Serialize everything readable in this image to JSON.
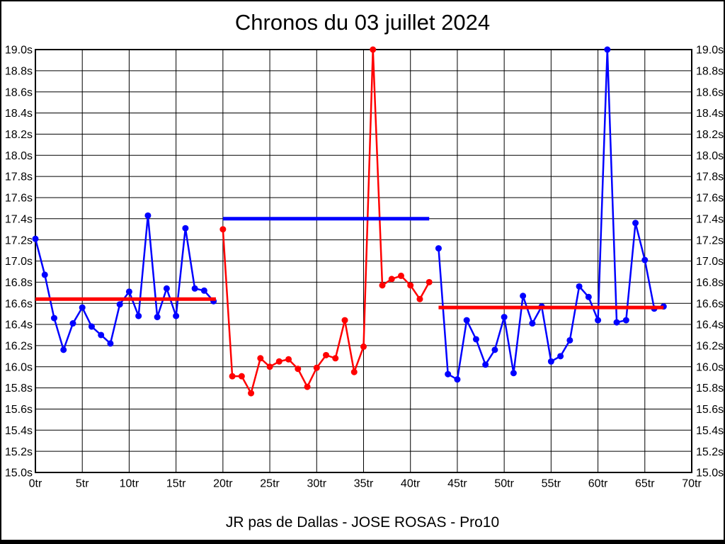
{
  "title": "Chronos du 03 juillet 2024",
  "caption": "JR pas de Dallas - JOSE ROSAS - Pro10",
  "chart_data": {
    "type": "line",
    "title": "Chronos du 03 juillet 2024",
    "subtitle": "JR pas de Dallas - JOSE ROSAS - Pro10",
    "x_unit": "tr",
    "y_unit": "s",
    "x_min": 0,
    "x_max": 70,
    "y_min": 15.0,
    "y_max": 19.0,
    "grid": true,
    "legend": "none",
    "colors": {
      "blue": "#0000ff",
      "red": "#ff0000",
      "grid": "#000000",
      "background": "#ffffff"
    },
    "x_ticks": [
      {
        "value": 0,
        "label": "0tr"
      },
      {
        "value": 5,
        "label": "5tr"
      },
      {
        "value": 10,
        "label": "10tr"
      },
      {
        "value": 15,
        "label": "15tr"
      },
      {
        "value": 20,
        "label": "20tr"
      },
      {
        "value": 25,
        "label": "25tr"
      },
      {
        "value": 30,
        "label": "30tr"
      },
      {
        "value": 35,
        "label": "35tr"
      },
      {
        "value": 40,
        "label": "40tr"
      },
      {
        "value": 45,
        "label": "45tr"
      },
      {
        "value": 50,
        "label": "50tr"
      },
      {
        "value": 55,
        "label": "55tr"
      },
      {
        "value": 60,
        "label": "60tr"
      },
      {
        "value": 65,
        "label": "65tr"
      },
      {
        "value": 70,
        "label": "70tr"
      }
    ],
    "y_ticks": [
      {
        "value": 19.0,
        "label": "19.0s"
      },
      {
        "value": 18.8,
        "label": "18.8s"
      },
      {
        "value": 18.6,
        "label": "18.6s"
      },
      {
        "value": 18.4,
        "label": "18.4s"
      },
      {
        "value": 18.2,
        "label": "18.2s"
      },
      {
        "value": 18.0,
        "label": "18.0s"
      },
      {
        "value": 17.8,
        "label": "17.8s"
      },
      {
        "value": 17.6,
        "label": "17.6s"
      },
      {
        "value": 17.4,
        "label": "17.4s"
      },
      {
        "value": 17.2,
        "label": "17.2s"
      },
      {
        "value": 17.0,
        "label": "17.0s"
      },
      {
        "value": 16.8,
        "label": "16.8s"
      },
      {
        "value": 16.6,
        "label": "16.6s"
      },
      {
        "value": 16.4,
        "label": "16.4s"
      },
      {
        "value": 16.2,
        "label": "16.2s"
      },
      {
        "value": 16.0,
        "label": "16.0s"
      },
      {
        "value": 15.8,
        "label": "15.8s"
      },
      {
        "value": 15.6,
        "label": "15.6s"
      },
      {
        "value": 15.4,
        "label": "15.4s"
      },
      {
        "value": 15.2,
        "label": "15.2s"
      },
      {
        "value": 15.0,
        "label": "15.0s"
      }
    ],
    "series": [
      {
        "name": "stint-1-lap-times",
        "color": "#0000ff",
        "start_lap": 0,
        "values": [
          17.21,
          16.87,
          16.46,
          16.16,
          16.41,
          16.56,
          16.38,
          16.3,
          16.22,
          16.59,
          16.71,
          16.48,
          17.43,
          16.47,
          16.74,
          16.48,
          17.31,
          16.74,
          16.72,
          16.62
        ]
      },
      {
        "name": "stint-2-lap-times",
        "color": "#ff0000",
        "start_lap": 20,
        "values": [
          17.3,
          15.91,
          15.91,
          15.75,
          16.08,
          16.0,
          16.05,
          16.07,
          15.98,
          15.81,
          15.99,
          16.11,
          16.08,
          16.44,
          15.95,
          16.19,
          19.0,
          16.77,
          16.83,
          16.86,
          16.77,
          16.64,
          16.8
        ]
      },
      {
        "name": "stint-3-lap-times",
        "color": "#0000ff",
        "start_lap": 43,
        "values": [
          17.12,
          15.93,
          15.88,
          16.44,
          16.26,
          16.02,
          16.16,
          16.47,
          15.94,
          16.67,
          16.41,
          16.57,
          16.05,
          16.1,
          16.25,
          16.76,
          16.66,
          16.44,
          19.0,
          16.42,
          16.44,
          17.36,
          17.01,
          16.55,
          16.57
        ]
      }
    ],
    "avg_lines": [
      {
        "name": "stint-1-average-line",
        "color": "#ff0000",
        "value": 16.64,
        "from_lap": 0,
        "to_lap": 19.25
      },
      {
        "name": "stint-2-average-line",
        "color": "#0000ff",
        "value": 17.4,
        "from_lap": 20,
        "to_lap": 42
      },
      {
        "name": "stint-3-average-line",
        "color": "#ff0000",
        "value": 16.56,
        "from_lap": 43,
        "to_lap": 67
      }
    ]
  }
}
